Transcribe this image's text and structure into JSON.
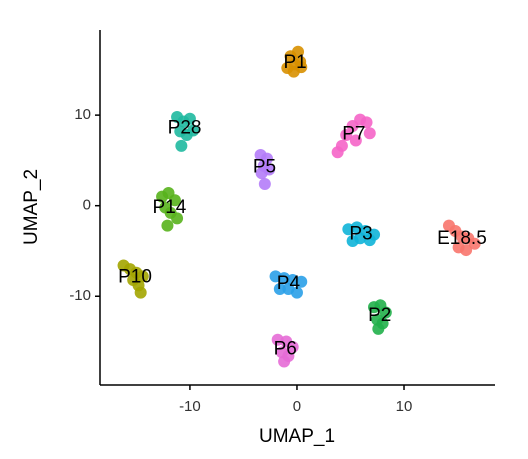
{
  "chart_data": {
    "type": "scatter",
    "x_label": "UMAP_1",
    "y_label": "UMAP_2",
    "xlim": [
      -18.4,
      18.5
    ],
    "ylim": [
      -19.8,
      19.4
    ],
    "xticks": [
      -10,
      0,
      10
    ],
    "yticks": [
      -10,
      0,
      10
    ],
    "grid": false,
    "series": [
      {
        "name": "P1",
        "color": "#d89000",
        "x": [
          -0.9,
          -0.2,
          0.3,
          -0.6,
          0.1,
          -0.3,
          0.4
        ],
        "values": [
          15.2,
          15.6,
          15.9,
          16.5,
          17.0,
          14.8,
          15.3
        ]
      },
      {
        "name": "P7",
        "color": "#f565c8",
        "x": [
          4.6,
          5.2,
          5.9,
          6.5,
          5.5,
          6.8,
          4.2,
          3.8
        ],
        "values": [
          7.8,
          8.8,
          9.5,
          9.2,
          7.2,
          8.0,
          6.6,
          5.9
        ]
      },
      {
        "name": "P28",
        "color": "#1fb9a0",
        "x": [
          -11.2,
          -10.6,
          -10.0,
          -10.9,
          -10.3,
          -9.7,
          -10.8
        ],
        "values": [
          9.8,
          9.3,
          9.6,
          8.2,
          7.8,
          8.3,
          6.6
        ]
      },
      {
        "name": "P5",
        "color": "#b47cf8",
        "x": [
          -3.4,
          -2.8,
          -3.1,
          -2.6,
          -3.3,
          -3.0
        ],
        "values": [
          5.6,
          5.2,
          4.4,
          4.0,
          3.6,
          2.4
        ]
      },
      {
        "name": "P14",
        "color": "#58b21c",
        "x": [
          -12.6,
          -12.0,
          -11.4,
          -12.3,
          -11.8,
          -11.2,
          -12.1
        ],
        "values": [
          1.0,
          1.4,
          0.6,
          -0.2,
          -0.8,
          -1.4,
          -2.2
        ]
      },
      {
        "name": "P3",
        "color": "#10b4d8",
        "x": [
          4.8,
          5.6,
          6.4,
          7.2,
          5.9,
          6.8,
          5.2
        ],
        "values": [
          -2.6,
          -2.4,
          -2.8,
          -3.2,
          -3.6,
          -3.8,
          -3.9
        ]
      },
      {
        "name": "E18.5",
        "color": "#f8766d",
        "x": [
          14.2,
          14.8,
          15.4,
          16.0,
          16.6,
          15.1,
          15.8
        ],
        "values": [
          -2.2,
          -2.8,
          -3.4,
          -3.6,
          -4.2,
          -4.6,
          -4.9
        ]
      },
      {
        "name": "P10",
        "color": "#a3a500",
        "x": [
          -16.2,
          -15.6,
          -15.0,
          -14.4,
          -15.3,
          -14.8,
          -14.6
        ],
        "values": [
          -6.6,
          -7.0,
          -7.4,
          -7.8,
          -8.2,
          -8.8,
          -9.6
        ]
      },
      {
        "name": "P4",
        "color": "#2aa0e8",
        "x": [
          -2.0,
          -1.2,
          -0.4,
          0.4,
          -1.6,
          -0.8,
          0.0
        ],
        "values": [
          -7.8,
          -8.0,
          -8.2,
          -8.4,
          -9.2,
          -9.2,
          -9.6
        ]
      },
      {
        "name": "P2",
        "color": "#21b04a",
        "x": [
          7.2,
          7.8,
          8.3,
          7.5,
          8.0,
          7.6
        ],
        "values": [
          -11.2,
          -11.0,
          -11.8,
          -12.6,
          -13.0,
          -13.6
        ]
      },
      {
        "name": "P6",
        "color": "#e56bd6",
        "x": [
          -1.8,
          -1.0,
          -0.4,
          -1.4,
          -0.8,
          -1.2
        ],
        "values": [
          -14.8,
          -15.0,
          -15.6,
          -16.2,
          -16.6,
          -17.2
        ]
      }
    ]
  }
}
